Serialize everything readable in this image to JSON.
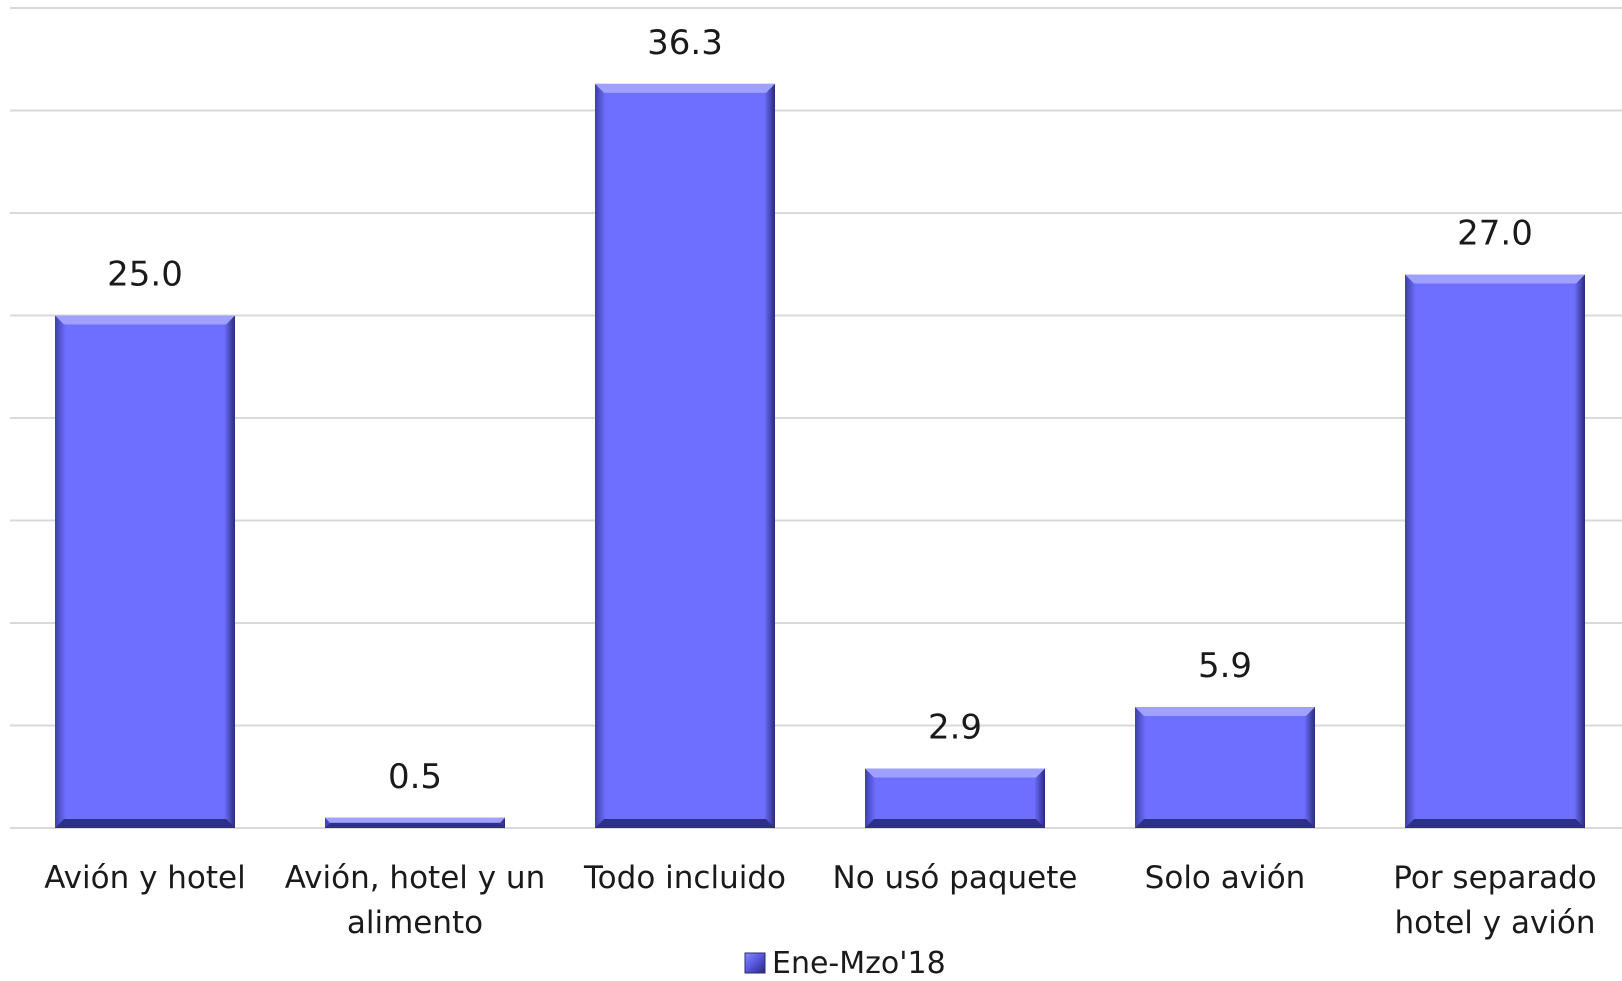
{
  "chart_data": {
    "type": "bar",
    "categories": [
      [
        "Avión y hotel"
      ],
      [
        "Avión, hotel y un",
        "alimento"
      ],
      [
        "Todo incluido"
      ],
      [
        "No usó paquete"
      ],
      [
        "Solo avión"
      ],
      [
        "Por separado",
        "hotel y avión"
      ]
    ],
    "series": [
      {
        "name": "Ene-Mzo'18",
        "values": [
          25.0,
          0.5,
          36.3,
          2.9,
          5.9,
          27.0
        ],
        "labels": [
          "25.0",
          "0.5",
          "36.3",
          "2.9",
          "5.9",
          "27.0"
        ],
        "color": "#6e6ffe"
      }
    ],
    "ylim": [
      0,
      40
    ],
    "grid": true,
    "y_tick_labels_shown": false,
    "legend": "bottom-center"
  }
}
